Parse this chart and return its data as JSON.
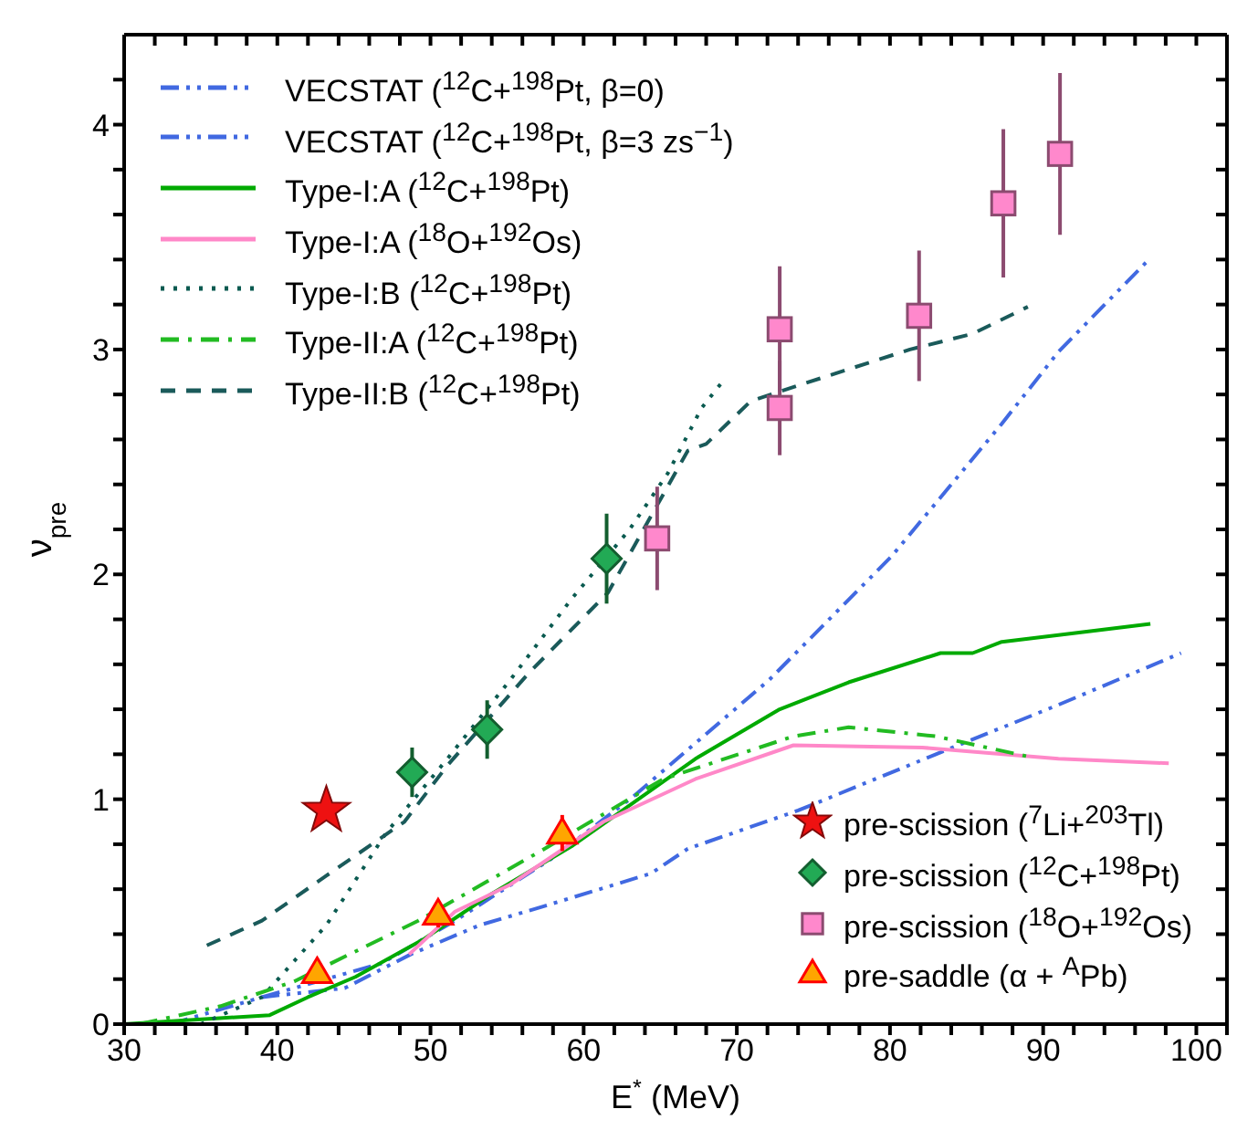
{
  "chart_data": {
    "type": "line",
    "xlabel": "E$^{*}$ (MeV)",
    "ylabel": "ν$_{pre}$",
    "xlim": [
      30,
      102
    ],
    "ylim": [
      0,
      4.4
    ],
    "xticks": [
      30,
      {
        "value": 32,
        "label": null
      },
      {
        "value": 34,
        "label": null
      },
      {
        "value": 36,
        "label": null
      },
      {
        "value": 38,
        "label": null
      },
      40,
      {
        "value": 42,
        "label": null
      },
      {
        "value": 44,
        "label": null
      },
      {
        "value": 46,
        "label": null
      },
      {
        "value": 48,
        "label": null
      },
      50,
      {
        "value": 52,
        "label": null
      },
      {
        "value": 54,
        "label": null
      },
      {
        "value": 56,
        "label": null
      },
      {
        "value": 58,
        "label": null
      },
      60,
      {
        "value": 62,
        "label": null
      },
      {
        "value": 64,
        "label": null
      },
      {
        "value": 66,
        "label": null
      },
      {
        "value": 68,
        "label": null
      },
      70,
      {
        "value": 72,
        "label": null
      },
      {
        "value": 74,
        "label": null
      },
      {
        "value": 76,
        "label": null
      },
      {
        "value": 78,
        "label": null
      },
      80,
      {
        "value": 82,
        "label": null
      },
      {
        "value": 84,
        "label": null
      },
      {
        "value": 86,
        "label": null
      },
      {
        "value": 88,
        "label": null
      },
      90,
      {
        "value": 92,
        "label": null
      },
      {
        "value": 94,
        "label": null
      },
      {
        "value": 96,
        "label": null
      },
      {
        "value": 98,
        "label": null
      },
      100,
      {
        "value": 102,
        "label": null
      }
    ],
    "yticks": [
      0,
      {
        "value": 0.2,
        "label": null
      },
      {
        "value": 0.4,
        "label": null
      },
      {
        "value": 0.6,
        "label": null
      },
      {
        "value": 0.8,
        "label": null
      },
      1,
      {
        "value": 1.2,
        "label": null
      },
      {
        "value": 1.4,
        "label": null
      },
      {
        "value": 1.6,
        "label": null
      },
      {
        "value": 1.8,
        "label": null
      },
      2,
      {
        "value": 2.2,
        "label": null
      },
      {
        "value": 2.4,
        "label": null
      },
      {
        "value": 2.6,
        "label": null
      },
      {
        "value": 2.8,
        "label": null
      },
      3,
      {
        "value": 3.2,
        "label": null
      },
      {
        "value": 3.4,
        "label": null
      },
      {
        "value": 3.6,
        "label": null
      },
      {
        "value": 3.8,
        "label": null
      },
      4,
      {
        "value": 4.2,
        "label": null
      }
    ],
    "legend": [
      "top left",
      "bottom right"
    ],
    "marker": "none",
    "series": [
      {
        "name": "VECSTAT ($^{12}$C+$^{198}$Pt, β=0)",
        "color": "#4169e1",
        "line_style": "dash-dot-dot",
        "x": [
          33,
          39,
          44.4,
          48.7,
          53.2,
          57.2,
          64.4,
          66.8,
          74,
          83,
          91,
          99
        ],
        "values": [
          0,
          0.12,
          0.16,
          0.31,
          0.44,
          0.52,
          0.67,
          0.78,
          0.95,
          1.2,
          1.42,
          1.65
        ]
      },
      {
        "name": "VECSTAT ($^{12}$C+$^{198}$Pt, β=3 zs$^{−1}$)",
        "color": "#4169e1",
        "line_style": "dash-dot-dot",
        "x": [
          39,
          46.8,
          51.6,
          58,
          63.2,
          72.1,
          80.1,
          87.3,
          91,
          96.9
        ],
        "values": [
          0.12,
          0.27,
          0.46,
          0.74,
          1.01,
          1.53,
          2.08,
          2.67,
          2.99,
          3.4
        ]
      },
      {
        "name": "Type-I:A ($^{12}$C+$^{198}$Pt)",
        "color": "#00aa00",
        "line_style": "solid",
        "x": [
          30,
          39.5,
          42,
          45.1,
          49.6,
          54,
          59.2,
          67.3,
          72.8,
          77.3,
          83.3,
          85.4,
          87.3,
          91,
          97
        ],
        "values": [
          0,
          0.04,
          0.12,
          0.21,
          0.38,
          0.58,
          0.79,
          1.18,
          1.4,
          1.52,
          1.65,
          1.65,
          1.7,
          1.73,
          1.78
        ]
      },
      {
        "name": "Type-I:A ($^{18}$O+$^{192}$Os)",
        "color": "#ff88c8",
        "line_style": "solid",
        "x": [
          48.6,
          51.6,
          55.2,
          61.3,
          67.3,
          73.7,
          82.1,
          91,
          98.2
        ],
        "values": [
          0.31,
          0.5,
          0.62,
          0.9,
          1.09,
          1.24,
          1.23,
          1.18,
          1.16
        ]
      },
      {
        "name": "Type-I:B ($^{12}$C+$^{198}$Pt)",
        "color": "#0a5a50",
        "line_style": "dotted",
        "x": [
          35,
          39,
          43.2,
          47.1,
          51.1,
          55.2,
          59.2,
          63,
          65.5,
          67.7,
          69.1
        ],
        "values": [
          0,
          0.12,
          0.44,
          0.85,
          1.18,
          1.53,
          1.89,
          2.2,
          2.45,
          2.74,
          2.86
        ]
      },
      {
        "name": "Type-II:A ($^{12}$C+$^{198}$Pt)",
        "color": "#22bb22",
        "line_style": "dash-dot",
        "x": [
          31,
          36.3,
          41.1,
          49.2,
          57.2,
          65.2,
          73.7,
          77.3,
          83,
          89
        ],
        "values": [
          0,
          0.08,
          0.19,
          0.46,
          0.77,
          1.09,
          1.28,
          1.32,
          1.28,
          1.19
        ]
      },
      {
        "name": "Type-II:B ($^{12}$C+$^{198}$Pt)",
        "color": "#1a5a5a",
        "line_style": "dashed",
        "x": [
          35.4,
          39,
          43.2,
          48.3,
          51.1,
          56.4,
          61.6,
          66.8,
          68,
          70.9,
          74,
          81.3,
          85.4,
          89
        ],
        "values": [
          0.35,
          0.46,
          0.66,
          0.9,
          1.15,
          1.56,
          1.92,
          2.55,
          2.58,
          2.77,
          2.84,
          3.0,
          3.07,
          3.19
        ]
      },
      {
        "name": "pre-scission ($^{7}$Li+$^{203}$Tl)",
        "type": "scatter",
        "marker": "star",
        "color": "#ee1111",
        "x": [
          43.2
        ],
        "values": [
          0.95
        ]
      },
      {
        "name": "pre-scission ($^{12}$C+$^{198}$Pt)",
        "type": "scatter",
        "marker": "diamond",
        "color": "#22aa55",
        "x": [
          48.8,
          53.7,
          61.5
        ],
        "values": [
          1.12,
          1.31,
          2.07
        ],
        "errors": [
          0.11,
          0.13,
          0.2
        ]
      },
      {
        "name": "pre-scission ($^{18}$O+$^{192}$Os)",
        "type": "scatter",
        "marker": "square",
        "color": "#ff88cc",
        "x": [
          64.8,
          72.8,
          72.8,
          81.9,
          87.4,
          91.1
        ],
        "values": [
          2.16,
          3.09,
          2.74,
          3.15,
          3.65,
          3.87
        ],
        "errors": [
          0.23,
          0.28,
          0.21,
          0.29,
          0.33,
          0.36
        ]
      },
      {
        "name": "pre-saddle (α + $^{A}$Pb)",
        "type": "scatter",
        "marker": "triangle",
        "color": "#ffa500",
        "x": [
          42.6,
          50.5,
          58.6
        ],
        "values": [
          0.23,
          0.49,
          0.85
        ],
        "errors": [
          0.05,
          0.06,
          0.08
        ]
      }
    ]
  }
}
